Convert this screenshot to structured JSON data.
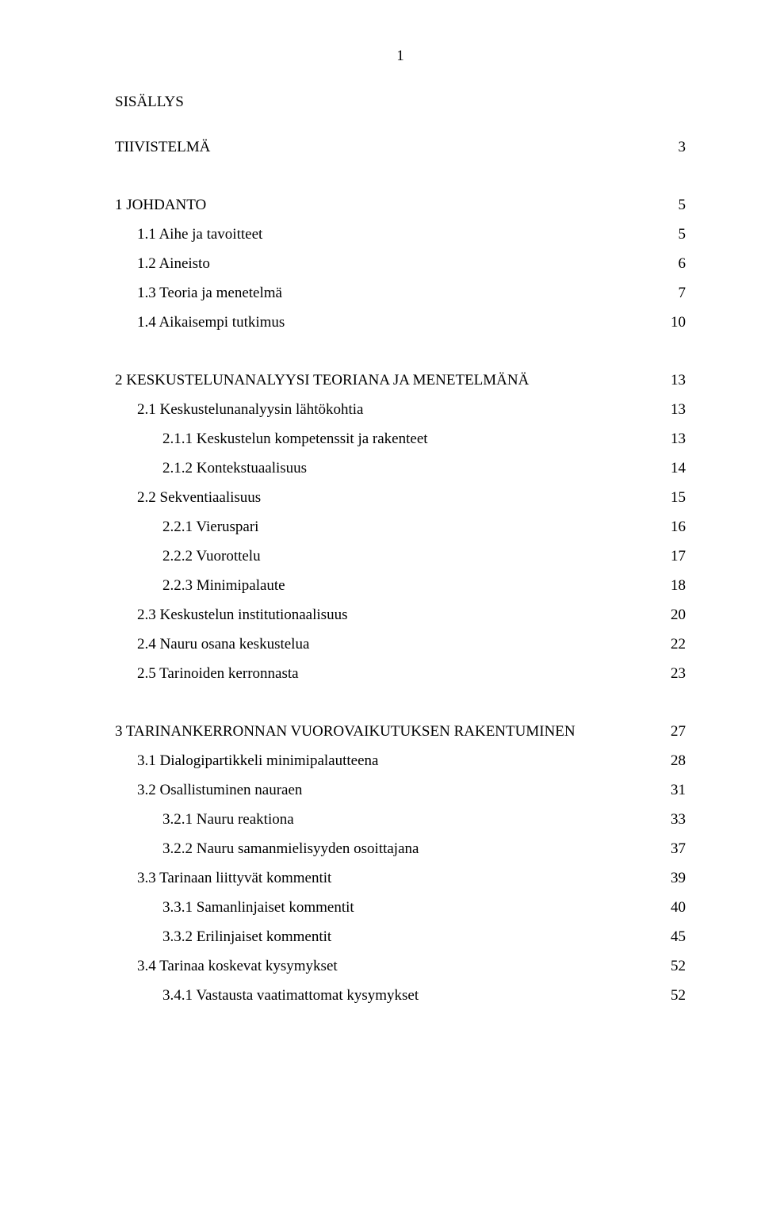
{
  "page_number_top": "1",
  "heading": "SISÄLLYS",
  "entries": [
    {
      "title": "TIIVISTELMÄ",
      "page": "3",
      "indent": 0,
      "gap_before": false
    },
    {
      "title": "1 JOHDANTO",
      "page": "5",
      "indent": 0,
      "gap_before": true
    },
    {
      "title": "1.1 Aihe ja tavoitteet",
      "page": "5",
      "indent": 1,
      "gap_before": false
    },
    {
      "title": "1.2 Aineisto",
      "page": "6",
      "indent": 1,
      "gap_before": false
    },
    {
      "title": "1.3 Teoria ja menetelmä",
      "page": "7",
      "indent": 1,
      "gap_before": false
    },
    {
      "title": "1.4 Aikaisempi tutkimus",
      "page": "10",
      "indent": 1,
      "gap_before": false
    },
    {
      "title": "2 KESKUSTELUNANALYYSI TEORIANA JA MENETELMÄNÄ",
      "page": "13",
      "indent": 0,
      "gap_before": true
    },
    {
      "title": "2.1 Keskustelunanalyysin lähtökohtia",
      "page": "13",
      "indent": 1,
      "gap_before": false
    },
    {
      "title": "2.1.1 Keskustelun kompetenssit ja rakenteet",
      "page": "13",
      "indent": 2,
      "gap_before": false
    },
    {
      "title": "2.1.2 Kontekstuaalisuus",
      "page": "14",
      "indent": 2,
      "gap_before": false
    },
    {
      "title": "2.2 Sekventiaalisuus",
      "page": "15",
      "indent": 1,
      "gap_before": false
    },
    {
      "title": "2.2.1 Vieruspari",
      "page": "16",
      "indent": 2,
      "gap_before": false
    },
    {
      "title": "2.2.2 Vuorottelu",
      "page": "17",
      "indent": 2,
      "gap_before": false
    },
    {
      "title": "2.2.3 Minimipalaute",
      "page": "18",
      "indent": 2,
      "gap_before": false
    },
    {
      "title": "2.3 Keskustelun institutionaalisuus",
      "page": "20",
      "indent": 1,
      "gap_before": false
    },
    {
      "title": "2.4 Nauru osana keskustelua",
      "page": "22",
      "indent": 1,
      "gap_before": false
    },
    {
      "title": "2.5 Tarinoiden kerronnasta",
      "page": "23",
      "indent": 1,
      "gap_before": false
    },
    {
      "title": "3 TARINANKERRONNAN VUOROVAIKUTUKSEN RAKENTUMINEN",
      "page": "27",
      "indent": 0,
      "gap_before": true
    },
    {
      "title": "3.1 Dialogipartikkeli minimipalautteena",
      "page": "28",
      "indent": 1,
      "gap_before": false
    },
    {
      "title": "3.2 Osallistuminen nauraen",
      "page": "31",
      "indent": 1,
      "gap_before": false
    },
    {
      "title": "3.2.1 Nauru reaktiona",
      "page": "33",
      "indent": 2,
      "gap_before": false
    },
    {
      "title": "3.2.2 Nauru samanmielisyyden osoittajana",
      "page": "37",
      "indent": 2,
      "gap_before": false
    },
    {
      "title": "3.3 Tarinaan liittyvät kommentit",
      "page": "39",
      "indent": 1,
      "gap_before": false
    },
    {
      "title": "3.3.1 Samanlinjaiset kommentit",
      "page": "40",
      "indent": 2,
      "gap_before": false
    },
    {
      "title": "3.3.2 Erilinjaiset kommentit",
      "page": "45",
      "indent": 2,
      "gap_before": false
    },
    {
      "title": "3.4 Tarinaa koskevat kysymykset",
      "page": "52",
      "indent": 1,
      "gap_before": false
    },
    {
      "title": "3.4.1 Vastausta vaatimattomat kysymykset",
      "page": "52",
      "indent": 2,
      "gap_before": false
    }
  ]
}
